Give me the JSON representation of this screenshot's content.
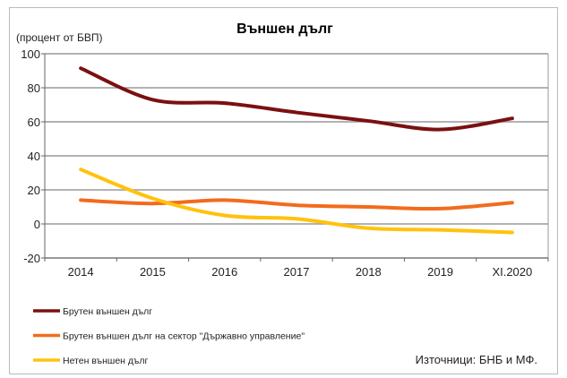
{
  "chart_data": {
    "type": "line",
    "title": "Външен дълг",
    "ylabel": "(процент от БВП)",
    "xlabel": "",
    "categories": [
      "2014",
      "2015",
      "2016",
      "2017",
      "2018",
      "2019",
      "XI.2020"
    ],
    "ylim": [
      -20,
      100
    ],
    "yticks": [
      -20,
      0,
      20,
      40,
      60,
      80,
      100
    ],
    "grid": true,
    "legend_position": "bottom-left",
    "series": [
      {
        "name": "Брутен външен дълг",
        "color": "#7b1010",
        "values": [
          91.5,
          73,
          71,
          65.5,
          60.5,
          55.5,
          62
        ]
      },
      {
        "name": "Брутен външен дълг на сектор \"Държавно управление\"",
        "color": "#f26b1d",
        "values": [
          14,
          12,
          14,
          11,
          10,
          9,
          12.5
        ]
      },
      {
        "name": "Нетен външен дълг",
        "color": "#ffc20e",
        "values": [
          32,
          15,
          5,
          3,
          -2.5,
          -3.5,
          -5
        ]
      }
    ],
    "source": "Източници: БНБ и МФ."
  }
}
